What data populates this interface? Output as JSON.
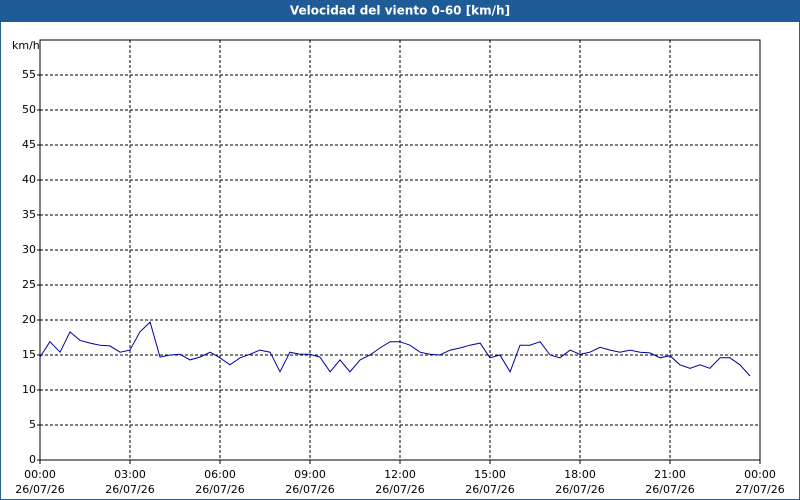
{
  "chart_data": {
    "type": "line",
    "title": "Velocidad del viento 0-60 [km/h]",
    "y_unit": "km/h",
    "x": [
      0,
      0.33,
      0.67,
      1,
      1.33,
      1.67,
      2,
      2.33,
      2.67,
      3,
      3.33,
      3.67,
      4,
      4.33,
      4.67,
      5,
      5.33,
      5.67,
      6,
      6.33,
      6.67,
      7,
      7.33,
      7.67,
      8,
      8.33,
      8.67,
      9,
      9.33,
      9.67,
      10,
      10.33,
      10.67,
      11,
      11.33,
      11.67,
      12,
      12.33,
      12.67,
      13,
      13.33,
      13.67,
      14,
      14.33,
      14.67,
      15,
      15.33,
      15.67,
      16,
      16.33,
      16.67,
      17,
      17.33,
      17.67,
      18,
      18.33,
      18.67,
      19,
      19.33,
      19.67,
      20,
      20.33,
      20.67,
      21,
      21.33,
      21.67,
      22,
      22.33,
      22.67,
      23,
      23.33,
      23.67
    ],
    "series": [
      {
        "name": "Velocidad del viento",
        "color": "#0000a0",
        "values": [
          14.7,
          16.9,
          15.4,
          18.3,
          17.1,
          16.7,
          16.4,
          16.3,
          15.4,
          15.7,
          18.3,
          19.7,
          14.7,
          15.0,
          15.1,
          14.3,
          14.7,
          15.4,
          14.6,
          13.6,
          14.6,
          15.1,
          15.7,
          15.4,
          12.6,
          15.4,
          15.1,
          15.1,
          14.7,
          12.6,
          14.3,
          12.6,
          14.3,
          15.0,
          16.0,
          16.9,
          16.9,
          16.4,
          15.4,
          15.1,
          15.0,
          15.7,
          16.0,
          16.4,
          16.7,
          14.6,
          15.0,
          12.6,
          16.4,
          16.4,
          16.9,
          15.0,
          14.6,
          15.7,
          15.1,
          15.4,
          16.1,
          15.7,
          15.4,
          15.7,
          15.4,
          15.3,
          14.6,
          14.9,
          13.6,
          13.1,
          13.6,
          13.1,
          14.6,
          14.6,
          13.6,
          12.0
        ]
      }
    ],
    "xlim": [
      0,
      24
    ],
    "xticks": [
      {
        "value": 0,
        "label": [
          "00:00",
          "26/07/26"
        ]
      },
      {
        "value": 3,
        "label": [
          "03:00",
          "26/07/26"
        ]
      },
      {
        "value": 6,
        "label": [
          "06:00",
          "26/07/26"
        ]
      },
      {
        "value": 9,
        "label": [
          "09:00",
          "26/07/26"
        ]
      },
      {
        "value": 12,
        "label": [
          "12:00",
          "26/07/26"
        ]
      },
      {
        "value": 15,
        "label": [
          "15:00",
          "26/07/26"
        ]
      },
      {
        "value": 18,
        "label": [
          "18:00",
          "26/07/26"
        ]
      },
      {
        "value": 21,
        "label": [
          "21:00",
          "26/07/26"
        ]
      },
      {
        "value": 24,
        "label": [
          "00:00",
          "27/07/26"
        ]
      }
    ],
    "ylim": [
      0,
      60
    ],
    "yticks": [
      0,
      5,
      10,
      15,
      20,
      25,
      30,
      35,
      40,
      45,
      50,
      55
    ],
    "grid": true
  }
}
